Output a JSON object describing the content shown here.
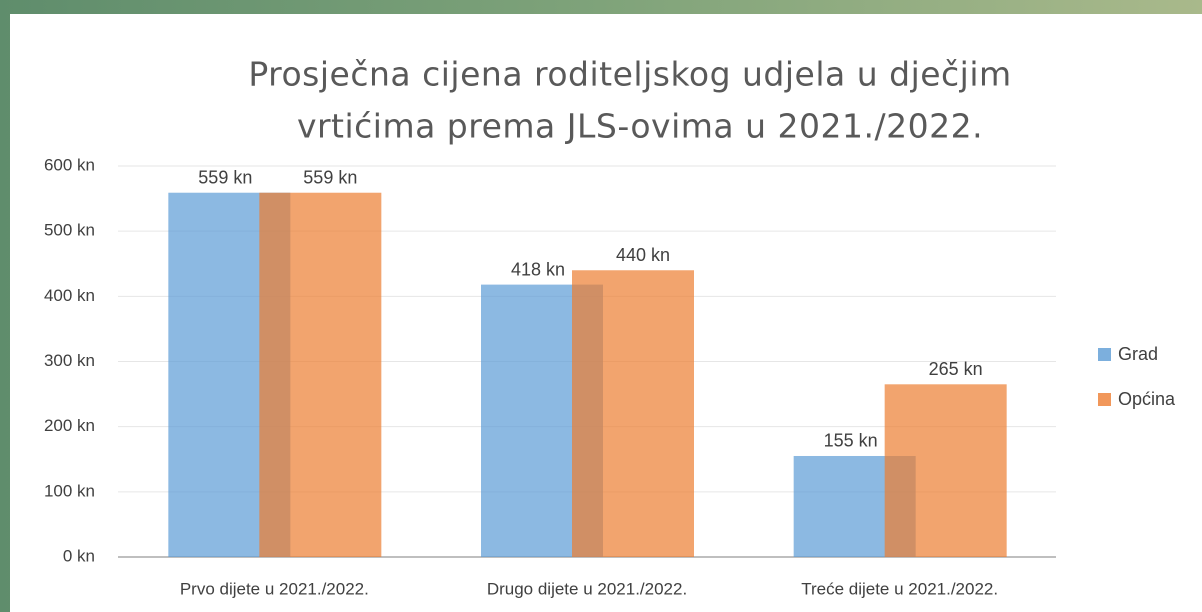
{
  "chart_data": {
    "type": "bar",
    "title": [
      "Prosječna cijena roditeljskog udjela u dječjim",
      "vrtićima prema JLS-ovima u 2021./2022."
    ],
    "categories": [
      "Prvo dijete u 2021./2022.",
      "Drugo dijete u 2021./2022.",
      "Treće dijete u 2021./2022."
    ],
    "series": [
      {
        "name": "Grad",
        "color": "#5b9bd5",
        "values": [
          559,
          418,
          155
        ],
        "value_labels": [
          "559 kn",
          "418 kn",
          "155 kn"
        ]
      },
      {
        "name": "Općina",
        "color": "#ed7d31",
        "values": [
          559,
          440,
          265
        ],
        "value_labels": [
          "559 kn",
          "440 kn",
          "265 kn"
        ]
      }
    ],
    "ylim": [
      0,
      600
    ],
    "yticks": [
      {
        "value": 0,
        "label": "0 kn"
      },
      {
        "value": 100,
        "label": "100 kn"
      },
      {
        "value": 200,
        "label": "200 kn"
      },
      {
        "value": 300,
        "label": "300 kn"
      },
      {
        "value": 400,
        "label": "400 kn"
      },
      {
        "value": 500,
        "label": "500 kn"
      },
      {
        "value": 600,
        "label": "600 kn"
      }
    ],
    "grid": true,
    "legend": "right"
  }
}
